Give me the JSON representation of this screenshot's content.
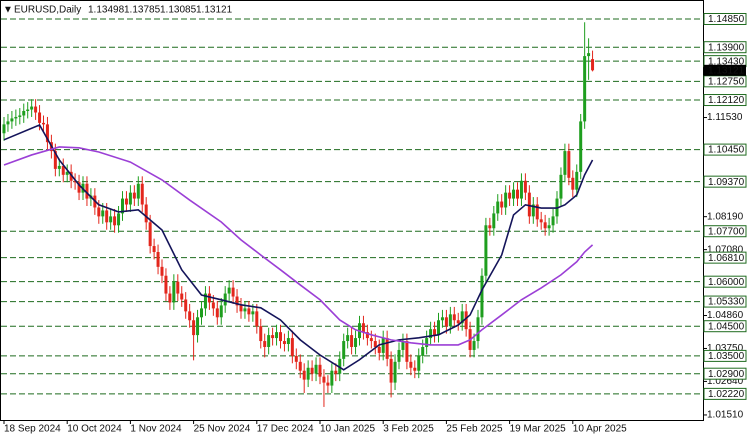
{
  "chart_data": {
    "type": "candlestick",
    "header": {
      "symbol": "EURUSD,Daily",
      "ohlc": [
        "1.13498",
        "1.13785",
        "1.13085",
        "1.13121"
      ]
    },
    "categories": [
      "18 Sep 2024",
      null,
      null,
      null,
      null,
      null,
      null,
      null,
      null,
      null,
      null,
      null,
      null,
      null,
      null,
      null,
      "10 Oct 2024",
      null,
      null,
      null,
      null,
      null,
      null,
      null,
      null,
      null,
      null,
      null,
      null,
      null,
      null,
      null,
      "1 Nov 2024",
      null,
      null,
      null,
      null,
      null,
      null,
      null,
      null,
      null,
      null,
      null,
      null,
      null,
      null,
      null,
      "25 Nov 2024",
      null,
      null,
      null,
      null,
      null,
      null,
      null,
      null,
      null,
      null,
      null,
      null,
      null,
      null,
      null,
      "17 Dec 2024",
      null,
      null,
      null,
      null,
      null,
      null,
      null,
      null,
      null,
      null,
      null,
      null,
      null,
      null,
      null,
      "10 Jan 2025",
      null,
      null,
      null,
      null,
      null,
      null,
      null,
      null,
      null,
      null,
      null,
      null,
      null,
      null,
      null,
      "3 Feb 2025",
      null,
      null,
      null,
      null,
      null,
      null,
      null,
      null,
      null,
      null,
      null,
      null,
      null,
      null,
      null,
      "25 Feb 2025",
      null,
      null,
      null,
      null,
      null,
      null,
      null,
      null,
      null,
      null,
      null,
      null,
      null,
      null,
      null,
      "19 Mar 2025",
      null,
      null,
      null,
      null,
      null,
      null,
      null,
      null,
      null,
      null,
      null,
      null,
      null,
      null,
      null,
      "10 Apr 2025",
      null,
      null,
      null,
      null,
      null
    ],
    "open": [
      1.11,
      1.113,
      1.114,
      1.115,
      1.1155,
      1.116,
      1.1175,
      1.118,
      1.119,
      1.117,
      1.1135,
      1.113,
      1.107,
      1.104,
      1.098,
      1.099,
      1.096,
      1.097,
      1.094,
      1.0935,
      1.09,
      1.093,
      1.088,
      1.089,
      1.085,
      1.082,
      1.084,
      1.08,
      1.082,
      1.079,
      1.083,
      1.088,
      1.086,
      1.09,
      1.088,
      1.093,
      1.086,
      1.08,
      1.072,
      1.07,
      1.065,
      1.062,
      1.056,
      1.053,
      1.06,
      1.056,
      1.054,
      1.05,
      1.047,
      1.042,
      1.048,
      1.051,
      1.056,
      1.053,
      1.051,
      1.048,
      1.052,
      1.056,
      1.058,
      1.055,
      1.052,
      1.05,
      1.051,
      1.049,
      1.05,
      1.045,
      1.04,
      1.038,
      1.042,
      1.041,
      1.043,
      1.04,
      1.039,
      1.041,
      1.035,
      1.033,
      1.03,
      1.027,
      1.031,
      1.029,
      1.032,
      1.028,
      1.026,
      1.025,
      1.03,
      1.029,
      1.034,
      1.04,
      1.042,
      1.038,
      1.041,
      1.046,
      1.043,
      1.041,
      1.04,
      1.038,
      1.036,
      1.041,
      1.034,
      1.026,
      1.033,
      1.037,
      1.04,
      1.033,
      1.031,
      1.03,
      1.035,
      1.038,
      1.041,
      1.044,
      1.042,
      1.047,
      1.048,
      1.045,
      1.049,
      1.047,
      1.046,
      1.05,
      1.044,
      1.037,
      1.04,
      1.048,
      1.062,
      1.079,
      1.078,
      1.083,
      1.087,
      1.085,
      1.09,
      1.088,
      1.091,
      1.088,
      1.094,
      1.09,
      1.082,
      1.086,
      1.081,
      1.08,
      1.078,
      1.079,
      1.082,
      1.088,
      1.096,
      1.104,
      1.095,
      1.091,
      1.097,
      1.114,
      1.136,
      1.13498
    ],
    "high": [
      1.1155,
      1.1165,
      1.1175,
      1.118,
      1.1185,
      1.12,
      1.1205,
      1.1215,
      1.1215,
      1.1195,
      1.116,
      1.1155,
      1.1095,
      1.1065,
      1.1015,
      1.1015,
      1.0995,
      1.0995,
      1.0965,
      1.096,
      1.0955,
      1.0955,
      1.0915,
      1.0915,
      1.0875,
      1.0865,
      1.0865,
      1.0845,
      1.0845,
      1.0855,
      1.0905,
      1.0905,
      1.0925,
      1.0925,
      1.0955,
      1.0955,
      1.0885,
      1.0825,
      1.0745,
      1.0725,
      1.0675,
      1.0645,
      1.0585,
      1.0625,
      1.0625,
      1.0585,
      1.0565,
      1.0525,
      1.0495,
      1.0505,
      1.0535,
      1.0585,
      1.0585,
      1.0555,
      1.0535,
      1.0545,
      1.0585,
      1.0605,
      1.0605,
      1.0575,
      1.0545,
      1.0535,
      1.0535,
      1.0525,
      1.0525,
      1.0475,
      1.0425,
      1.0445,
      1.0445,
      1.0455,
      1.0455,
      1.0425,
      1.0435,
      1.0435,
      1.0375,
      1.0355,
      1.0325,
      1.0335,
      1.0335,
      1.0345,
      1.0345,
      1.0305,
      1.0285,
      1.0325,
      1.0325,
      1.0365,
      1.0425,
      1.0445,
      1.0445,
      1.0435,
      1.0485,
      1.0485,
      1.0455,
      1.0435,
      1.0425,
      1.0405,
      1.0435,
      1.0435,
      1.0365,
      1.0355,
      1.0395,
      1.0425,
      1.0425,
      1.0355,
      1.0335,
      1.0375,
      1.0405,
      1.0435,
      1.0465,
      1.0465,
      1.0495,
      1.0505,
      1.0505,
      1.0515,
      1.0515,
      1.0495,
      1.0525,
      1.0525,
      1.0465,
      1.0425,
      1.0505,
      1.0645,
      1.0815,
      1.0815,
      1.0855,
      1.0895,
      1.0895,
      1.0925,
      1.0925,
      1.0935,
      1.0935,
      1.0965,
      1.0965,
      1.0925,
      1.0885,
      1.0885,
      1.0835,
      1.0825,
      1.0815,
      1.0845,
      1.0905,
      1.0985,
      1.1065,
      1.1065,
      1.0975,
      1.0995,
      1.1165,
      1.1474,
      1.142,
      1.13785
    ],
    "low": [
      1.1075,
      1.1105,
      1.1115,
      1.1125,
      1.113,
      1.1135,
      1.115,
      1.1155,
      1.1145,
      1.111,
      1.1105,
      1.1045,
      1.1015,
      1.0955,
      1.0955,
      1.0935,
      1.0935,
      1.0915,
      1.091,
      1.0875,
      1.0875,
      1.0855,
      1.0855,
      1.0825,
      1.0795,
      1.0795,
      1.0775,
      1.0775,
      1.0765,
      1.0765,
      1.0805,
      1.0835,
      1.0835,
      1.0855,
      1.0855,
      1.0835,
      1.0775,
      1.0695,
      1.0675,
      1.0625,
      1.0595,
      1.0535,
      1.0505,
      1.0505,
      1.0535,
      1.0515,
      1.0475,
      1.0445,
      1.0335,
      1.0395,
      1.0455,
      1.0485,
      1.0505,
      1.0485,
      1.0455,
      1.0455,
      1.0495,
      1.0535,
      1.0525,
      1.0495,
      1.0475,
      1.0475,
      1.0465,
      1.0465,
      1.0425,
      1.0375,
      1.0345,
      1.0355,
      1.0385,
      1.0385,
      1.0375,
      1.0365,
      1.0365,
      1.0325,
      1.0305,
      1.0275,
      1.0225,
      1.0245,
      1.0265,
      1.0265,
      1.0255,
      1.0178,
      1.0225,
      1.0225,
      1.0265,
      1.0265,
      1.0315,
      1.0375,
      1.0355,
      1.0355,
      1.0385,
      1.0405,
      1.0385,
      1.0375,
      1.0355,
      1.0335,
      1.0335,
      1.0315,
      1.021,
      1.0235,
      1.0305,
      1.0345,
      1.0305,
      1.0285,
      1.0275,
      1.0275,
      1.0325,
      1.0355,
      1.0385,
      1.0395,
      1.0395,
      1.0445,
      1.0425,
      1.0425,
      1.0445,
      1.0435,
      1.0435,
      1.0415,
      1.0345,
      1.0345,
      1.0375,
      1.0455,
      1.0595,
      1.0755,
      1.0755,
      1.0805,
      1.0825,
      1.0825,
      1.0855,
      1.0855,
      1.0855,
      1.0855,
      1.0875,
      1.0795,
      1.0795,
      1.0785,
      1.0775,
      1.0755,
      1.0755,
      1.0765,
      1.0795,
      1.0855,
      1.0935,
      1.0925,
      1.0885,
      1.0885,
      1.0945,
      1.1115,
      1.128,
      1.13085
    ],
    "close": [
      1.113,
      1.114,
      1.115,
      1.1155,
      1.116,
      1.1175,
      1.118,
      1.119,
      1.117,
      1.1135,
      1.113,
      1.107,
      1.104,
      1.098,
      1.099,
      1.096,
      1.097,
      1.094,
      1.0935,
      1.09,
      1.093,
      1.088,
      1.089,
      1.085,
      1.082,
      1.084,
      1.08,
      1.082,
      1.079,
      1.083,
      1.088,
      1.086,
      1.09,
      1.088,
      1.093,
      1.086,
      1.08,
      1.072,
      1.07,
      1.065,
      1.062,
      1.056,
      1.053,
      1.06,
      1.056,
      1.054,
      1.05,
      1.047,
      1.042,
      1.048,
      1.051,
      1.056,
      1.053,
      1.051,
      1.048,
      1.052,
      1.056,
      1.058,
      1.055,
      1.052,
      1.05,
      1.051,
      1.049,
      1.05,
      1.045,
      1.04,
      1.038,
      1.042,
      1.041,
      1.043,
      1.04,
      1.039,
      1.041,
      1.035,
      1.033,
      1.03,
      1.027,
      1.031,
      1.029,
      1.032,
      1.028,
      1.026,
      1.025,
      1.03,
      1.029,
      1.034,
      1.04,
      1.042,
      1.038,
      1.041,
      1.046,
      1.043,
      1.041,
      1.04,
      1.038,
      1.036,
      1.041,
      1.034,
      1.026,
      1.033,
      1.037,
      1.04,
      1.033,
      1.031,
      1.03,
      1.035,
      1.038,
      1.041,
      1.044,
      1.042,
      1.047,
      1.048,
      1.045,
      1.049,
      1.047,
      1.046,
      1.05,
      1.044,
      1.037,
      1.04,
      1.048,
      1.062,
      1.079,
      1.078,
      1.083,
      1.087,
      1.085,
      1.09,
      1.088,
      1.091,
      1.088,
      1.094,
      1.09,
      1.082,
      1.086,
      1.081,
      1.08,
      1.078,
      1.079,
      1.082,
      1.088,
      1.096,
      1.104,
      1.095,
      1.091,
      1.097,
      1.114,
      1.136,
      1.137,
      1.13121
    ],
    "up_color": "#1e9e1e",
    "down_color": "#e3261c",
    "lines": [
      {
        "color": "#14145a",
        "x": [
          0,
          9,
          14,
          19,
          24,
          29,
          34,
          40,
          45,
          50,
          55,
          60,
          65,
          70,
          75,
          80,
          86,
          90,
          95,
          100,
          105,
          110,
          115,
          118,
          121,
          126,
          129,
          132,
          136,
          140,
          142,
          145,
          147,
          149
        ],
        "values": [
          1.1078,
          1.1128,
          1.101,
          1.0926,
          1.0859,
          1.0835,
          1.0842,
          1.0774,
          1.064,
          1.0555,
          1.0539,
          1.0522,
          1.0512,
          1.0471,
          1.0404,
          1.0353,
          1.0303,
          1.0337,
          1.0387,
          1.0404,
          1.0411,
          1.0421,
          1.0454,
          1.0488,
          1.0572,
          1.069,
          1.0825,
          1.0859,
          1.0848,
          1.0848,
          1.0859,
          1.0892,
          1.096,
          1.101
        ]
      },
      {
        "color": "#9b3fd6",
        "x": [
          0,
          7,
          14,
          19,
          24,
          32,
          40,
          47,
          55,
          60,
          65,
          70,
          75,
          80,
          85,
          89,
          93,
          98,
          103,
          108,
          115,
          118,
          121,
          126,
          131,
          136,
          141,
          145,
          147,
          149
        ],
        "values": [
          1.0993,
          1.1027,
          1.1054,
          1.1051,
          1.1037,
          1.1003,
          1.0943,
          1.0875,
          1.0801,
          1.0741,
          1.069,
          1.064,
          1.0589,
          1.0539,
          1.0471,
          1.0438,
          1.0421,
          1.0404,
          1.0394,
          1.0387,
          1.0387,
          1.0404,
          1.0438,
          1.0488,
          1.0539,
          1.0579,
          1.0623,
          1.0667,
          1.07,
          1.0724
        ]
      }
    ],
    "ylim": [
      1.0134,
      1.1549
    ],
    "yticks": [
      {
        "value": 1.1153,
        "label": "1.11530"
      },
      {
        "value": 1.0819,
        "label": "1.08190"
      },
      {
        "value": 1.0708,
        "label": "1.07080"
      },
      {
        "value": 1.0486,
        "label": "1.04860"
      },
      {
        "value": 1.0375,
        "label": "1.03750"
      },
      {
        "value": 1.0264,
        "label": "1.02640"
      },
      {
        "value": 1.0151,
        "label": "1.01510"
      }
    ],
    "levels": [
      {
        "value": 1.1485,
        "label": "1.14850"
      },
      {
        "value": 1.139,
        "label": "1.13900"
      },
      {
        "value": 1.1343,
        "label": "1.13430"
      },
      {
        "value": 1.1275,
        "label": "1.12750"
      },
      {
        "value": 1.1212,
        "label": "1.12120"
      },
      {
        "value": 1.1045,
        "label": "1.10450"
      },
      {
        "value": 1.0937,
        "label": "1.09370"
      },
      {
        "value": 1.077,
        "label": "1.07700"
      },
      {
        "value": 1.0681,
        "label": "1.06810"
      },
      {
        "value": 1.06,
        "label": "1.06000"
      },
      {
        "value": 1.0533,
        "label": "1.05330"
      },
      {
        "value": 1.045,
        "label": "1.04500"
      },
      {
        "value": 1.035,
        "label": "1.03500"
      },
      {
        "value": 1.029,
        "label": "1.02900"
      },
      {
        "value": 1.0222,
        "label": "1.02220"
      }
    ],
    "level_color": "#1f6b1f",
    "last_price": {
      "value": 1.13121,
      "label": "1.13121"
    }
  }
}
